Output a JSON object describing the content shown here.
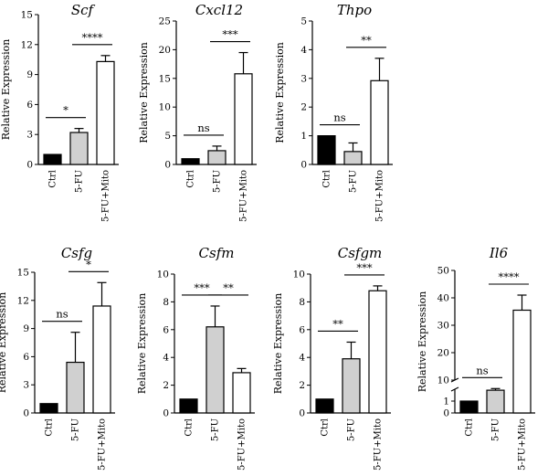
{
  "chart_data": [
    {
      "type": "bar",
      "title": "Scf",
      "ylabel": "Relative Expression",
      "ylim": [
        0,
        15
      ],
      "yticks": [
        "0",
        "3",
        "6",
        "9",
        "12",
        "15"
      ],
      "categories": [
        "Ctrl",
        "5-FU",
        "5-FU+Mito"
      ],
      "values": [
        1.0,
        3.2,
        10.3
      ],
      "errors": [
        0,
        0.4,
        0.6
      ],
      "brackets": [
        {
          "from": 0,
          "to": 1,
          "label": "*"
        },
        {
          "from": 1,
          "to": 2,
          "label": "****"
        }
      ]
    },
    {
      "type": "bar",
      "title": "Cxcl12",
      "ylabel": "Relative Expression",
      "ylim": [
        0,
        25
      ],
      "yticks": [
        "0",
        "5",
        "10",
        "15",
        "20",
        "25"
      ],
      "categories": [
        "Ctrl",
        "5-FU",
        "5-FU+Mito"
      ],
      "values": [
        1.0,
        2.4,
        15.8
      ],
      "errors": [
        0,
        0.8,
        3.7
      ],
      "brackets": [
        {
          "from": 0,
          "to": 1,
          "label": "ns"
        },
        {
          "from": 1,
          "to": 2,
          "label": "***"
        }
      ]
    },
    {
      "type": "bar",
      "title": "Thpo",
      "ylabel": "Relative Expression",
      "ylim": [
        0,
        5
      ],
      "yticks": [
        "0",
        "1",
        "2",
        "3",
        "4",
        "5"
      ],
      "categories": [
        "Ctrl",
        "5-FU",
        "5-FU+Mito"
      ],
      "values": [
        1.0,
        0.45,
        2.92
      ],
      "errors": [
        0,
        0.3,
        0.78
      ],
      "brackets": [
        {
          "from": 0,
          "to": 1,
          "label": "ns"
        },
        {
          "from": 1,
          "to": 2,
          "label": "**"
        }
      ]
    },
    {
      "type": "bar",
      "title": "Csfg",
      "ylabel": "Relative Expression",
      "ylim": [
        0,
        15
      ],
      "yticks": [
        "0",
        "3",
        "6",
        "9",
        "12",
        "15"
      ],
      "categories": [
        "Ctrl",
        "5-FU",
        "5-FU+Mito"
      ],
      "values": [
        1.0,
        5.4,
        11.4
      ],
      "errors": [
        0,
        3.2,
        2.5
      ],
      "brackets": [
        {
          "from": 0,
          "to": 1,
          "label": "ns"
        },
        {
          "from": 1,
          "to": 2,
          "label": "*"
        }
      ]
    },
    {
      "type": "bar",
      "title": "Csfm",
      "ylabel": "Relative Expression",
      "ylim": [
        0,
        10
      ],
      "yticks": [
        "0",
        "2",
        "4",
        "6",
        "8",
        "10"
      ],
      "categories": [
        "Ctrl",
        "5-FU",
        "5-FU+Mito"
      ],
      "values": [
        1.0,
        6.2,
        2.9
      ],
      "errors": [
        0,
        1.5,
        0.3
      ],
      "brackets": [
        {
          "from": 0,
          "to": 1,
          "label": "***"
        },
        {
          "from": 1,
          "to": 2,
          "label": "**"
        }
      ]
    },
    {
      "type": "bar",
      "title": "Csfgm",
      "ylabel": "Relative Expression",
      "ylim": [
        0,
        10
      ],
      "yticks": [
        "0",
        "2",
        "4",
        "6",
        "8",
        "10"
      ],
      "categories": [
        "Ctrl",
        "5-FU",
        "5-FU+Mito"
      ],
      "values": [
        1.0,
        3.9,
        8.8
      ],
      "errors": [
        0,
        1.2,
        0.35
      ],
      "brackets": [
        {
          "from": 0,
          "to": 1,
          "label": "**"
        },
        {
          "from": 1,
          "to": 2,
          "label": "***"
        }
      ]
    },
    {
      "type": "bar",
      "title": "Il6",
      "ylabel": "Relative Expression",
      "ylim": [
        0,
        50
      ],
      "axis_break": [
        2,
        10
      ],
      "yticks": [
        "0",
        "1",
        "10",
        "20",
        "30",
        "40",
        "50"
      ],
      "categories": [
        "Ctrl",
        "5-FU",
        "5-FU+Mito"
      ],
      "values": [
        1.0,
        6.3,
        35.5
      ],
      "errors": [
        0,
        0.6,
        5.5
      ],
      "brackets": [
        {
          "from": 0,
          "to": 1,
          "label": "ns"
        },
        {
          "from": 1,
          "to": 2,
          "label": "****"
        }
      ]
    }
  ],
  "colors": {
    "bar_fills": [
      "#000000",
      "#d0d0d0",
      "#ffffff"
    ],
    "stroke": "#000000"
  }
}
